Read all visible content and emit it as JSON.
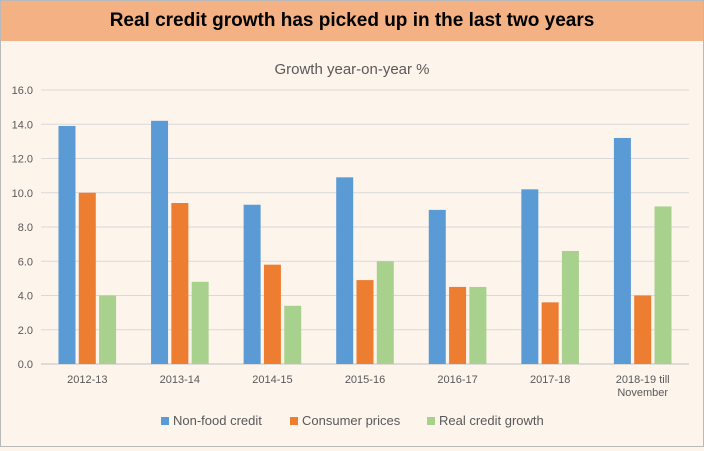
{
  "banner_title": "Real credit growth has picked up in the last two years",
  "chart_data": {
    "type": "bar",
    "title": "Growth year-on-year %",
    "xlabel": "",
    "ylabel": "",
    "ylim": [
      0,
      16
    ],
    "yticks": [
      "0.0",
      "2.0",
      "4.0",
      "6.0",
      "8.0",
      "10.0",
      "12.0",
      "14.0",
      "16.0"
    ],
    "categories": [
      "2012-13",
      "2013-14",
      "2014-15",
      "2015-16",
      "2016-17",
      "2017-18",
      "2018-19 till November"
    ],
    "category_lines": [
      [
        "2012-13"
      ],
      [
        "2013-14"
      ],
      [
        "2014-15"
      ],
      [
        "2015-16"
      ],
      [
        "2016-17"
      ],
      [
        "2017-18"
      ],
      [
        "2018-19 till",
        "November"
      ]
    ],
    "series": [
      {
        "name": "Non-food credit",
        "color": "#5b9bd5",
        "values": [
          13.9,
          14.2,
          9.3,
          10.9,
          9.0,
          10.2,
          13.2
        ]
      },
      {
        "name": "Consumer prices",
        "color": "#ed7d31",
        "values": [
          10.0,
          9.4,
          5.8,
          4.9,
          4.5,
          3.6,
          4.0
        ]
      },
      {
        "name": "Real credit growth",
        "color": "#a9d18e",
        "values": [
          4.0,
          4.8,
          3.4,
          6.0,
          4.5,
          6.6,
          9.2
        ]
      }
    ],
    "grid": true,
    "legend_position": "bottom"
  }
}
